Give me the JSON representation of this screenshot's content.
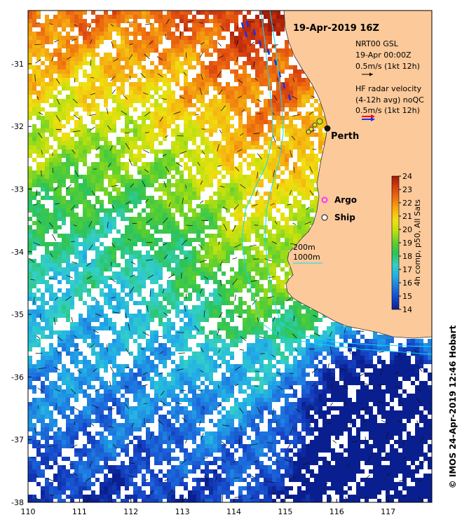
{
  "map": {
    "date_title": "19-Apr-2019 16Z",
    "credit": "© IMOS 24-Apr-2019 12:46 Hobart",
    "lon_ticks": [
      "110",
      "111",
      "112",
      "113",
      "114",
      "115",
      "116",
      "117"
    ],
    "lat_ticks": [
      "-31",
      "-32",
      "-33",
      "-34",
      "-35",
      "-36",
      "-37",
      "-38"
    ],
    "lon_range": [
      110,
      117.85
    ],
    "lat_range": [
      -38,
      -30.15
    ]
  },
  "legend": {
    "gsl_title": "NRT00 GSL",
    "gsl_time": "19-Apr 00:00Z",
    "gsl_scale": "0.5m/s (1kt 12h)",
    "radar_line1": "HF radar velocity",
    "radar_line2": "(4-12h avg) noQC",
    "radar_scale": "0.5m/s (1kt 12h)",
    "argo_label": "Argo",
    "ship_label": "Ship",
    "depth_200": "200m",
    "depth_1000": "1000m"
  },
  "places": {
    "perth": "Perth"
  },
  "colorbar": {
    "title": "4h comp, p50, All Sats",
    "min": 14,
    "max": 24,
    "ticks": [
      "14",
      "15",
      "16",
      "17",
      "18",
      "19",
      "20",
      "21",
      "22",
      "23",
      "24"
    ],
    "colors": [
      "#0a1f8f",
      "#1646c8",
      "#1e78e0",
      "#22aee6",
      "#33d0c8",
      "#2cc35a",
      "#5ccf2e",
      "#b8e010",
      "#f0e010",
      "#f5b010",
      "#ef7010",
      "#d84010",
      "#a01a0a"
    ]
  },
  "colors": {
    "land": "#fbc99a",
    "isobath": "#00e0ff",
    "argo": "#ff33ff"
  }
}
